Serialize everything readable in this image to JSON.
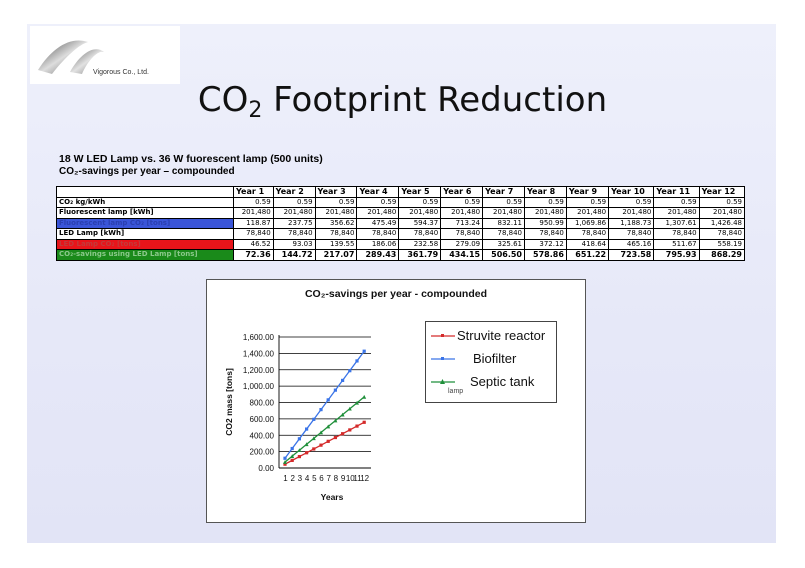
{
  "logo": {
    "company": "Vigorous Co., Ltd."
  },
  "title": {
    "main": "CO",
    "sub": "2",
    "rest": " Footprint Reduction"
  },
  "subtitle1": "18 W LED Lamp vs. 36 W fuorescent lamp (500 units)",
  "subtitle2": "CO₂-savings per year – compounded",
  "table": {
    "years": [
      "Year 1",
      "Year 2",
      "Year 3",
      "Year 4",
      "Year 5",
      "Year 6",
      "Year 7",
      "Year 8",
      "Year 9",
      "Year 10",
      "Year 11",
      "Year 12"
    ],
    "rows": [
      {
        "label": "CO₂ kg/kWh",
        "values": [
          "0.59",
          "0.59",
          "0.59",
          "0.59",
          "0.59",
          "0.59",
          "0.59",
          "0.59",
          "0.59",
          "0.59",
          "0.59",
          "0.59"
        ]
      },
      {
        "label": "Fluorescent lamp [kWh]",
        "values": [
          "201,480",
          "201,480",
          "201,480",
          "201,480",
          "201,480",
          "201,480",
          "201,480",
          "201,480",
          "201,480",
          "201,480",
          "201,480",
          "201,480"
        ]
      },
      {
        "label": "Fluorescent lamp CO₂ [tons]",
        "values": [
          "118.87",
          "237.75",
          "356.62",
          "475.49",
          "594.37",
          "713.24",
          "832.11",
          "950.99",
          "1,069.86",
          "1,188.73",
          "1,307.61",
          "1,426.48"
        ]
      },
      {
        "label": "LED Lamp [kWh]",
        "values": [
          "78,840",
          "78,840",
          "78,840",
          "78,840",
          "78,840",
          "78,840",
          "78,840",
          "78,840",
          "78,840",
          "78,840",
          "78,840",
          "78,840"
        ]
      },
      {
        "label": "LED Lamp CO₂ [tons]",
        "values": [
          "46.52",
          "93.03",
          "139.55",
          "186.06",
          "232.58",
          "279.09",
          "325.61",
          "372.12",
          "418.64",
          "465.16",
          "511.67",
          "558.19"
        ]
      },
      {
        "label": "CO₂-savings using LED Lamp [tons]",
        "values": [
          "72.36",
          "144.72",
          "217.07",
          "289.43",
          "361.79",
          "434.15",
          "506.50",
          "578.86",
          "651.22",
          "723.58",
          "795.93",
          "868.29"
        ]
      }
    ]
  },
  "chart_data": {
    "type": "line",
    "title": "CO₂-savings per year - compounded",
    "xlabel": "Years",
    "ylabel": "CO2 mass [tons]",
    "x": [
      1,
      2,
      3,
      4,
      5,
      6,
      7,
      8,
      9,
      10,
      11,
      12
    ],
    "x_tick_labels": [
      "1",
      "2",
      "3",
      "4",
      "5",
      "6",
      "7",
      "8",
      "9",
      "10",
      "11",
      "12"
    ],
    "y_ticks": [
      "0.00",
      "200.00",
      "400.00",
      "600.00",
      "800.00",
      "1,000.00",
      "1,200.00",
      "1,400.00",
      "1,600.00"
    ],
    "ylim": [
      0,
      1600
    ],
    "grid": "horizontal",
    "legend_position": "right",
    "series": [
      {
        "name": "Struvite reactor",
        "color": "#d42a2a",
        "values": [
          46.52,
          93.03,
          139.55,
          186.06,
          232.58,
          279.09,
          325.61,
          372.12,
          418.64,
          465.16,
          511.67,
          558.19
        ]
      },
      {
        "name": "Biofilter",
        "color": "#3a74e8",
        "values": [
          118.87,
          237.75,
          356.62,
          475.49,
          594.37,
          713.24,
          832.11,
          950.99,
          1069.86,
          1188.73,
          1307.61,
          1426.48
        ]
      },
      {
        "name": "Septic tank",
        "color": "#1f8f3a",
        "values": [
          72.36,
          144.72,
          217.07,
          289.43,
          361.79,
          434.15,
          506.5,
          578.86,
          651.22,
          723.58,
          795.93,
          868.29
        ]
      }
    ],
    "legend_stray_text": "lamp"
  }
}
